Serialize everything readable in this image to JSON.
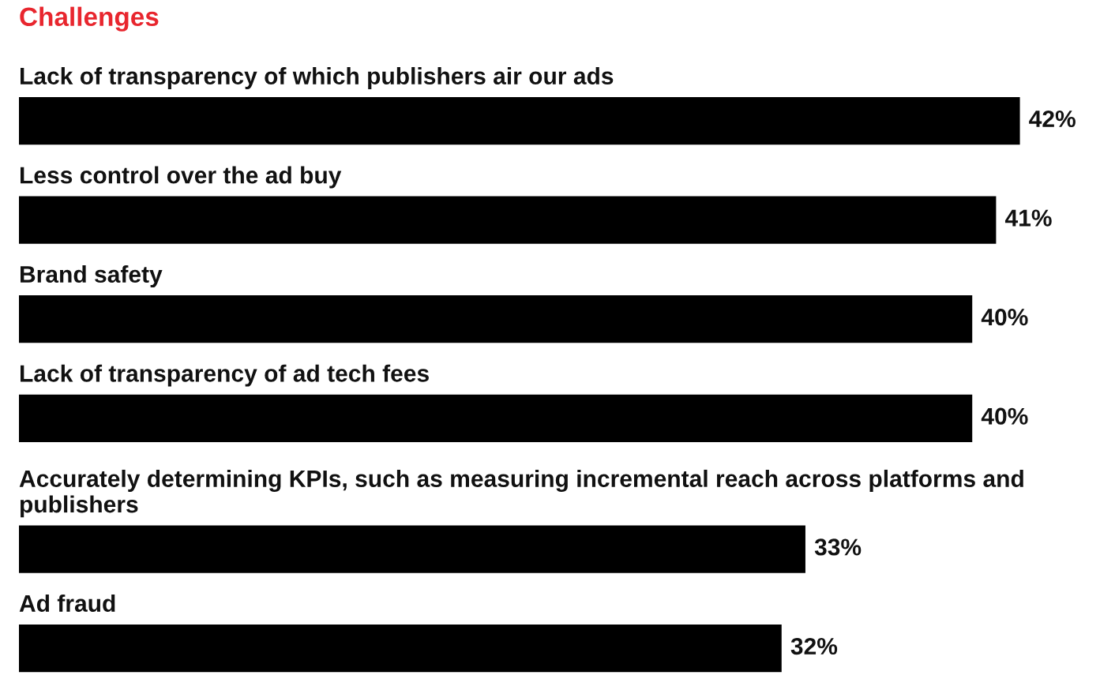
{
  "chart_data": {
    "type": "bar",
    "orientation": "horizontal",
    "title": "Challenges",
    "categories": [
      "Lack of transparency of which publishers air our ads",
      "Less control over the ad buy",
      "Brand safety",
      "Lack of transparency of ad tech fees",
      "Accurately determining KPIs, such as measuring incremental reach across platforms and publishers",
      "Ad fraud"
    ],
    "values": [
      42,
      41,
      40,
      40,
      33,
      32
    ],
    "value_labels": [
      "42%",
      "41%",
      "40%",
      "40%",
      "33%",
      "32%"
    ],
    "color": "#000000"
  }
}
